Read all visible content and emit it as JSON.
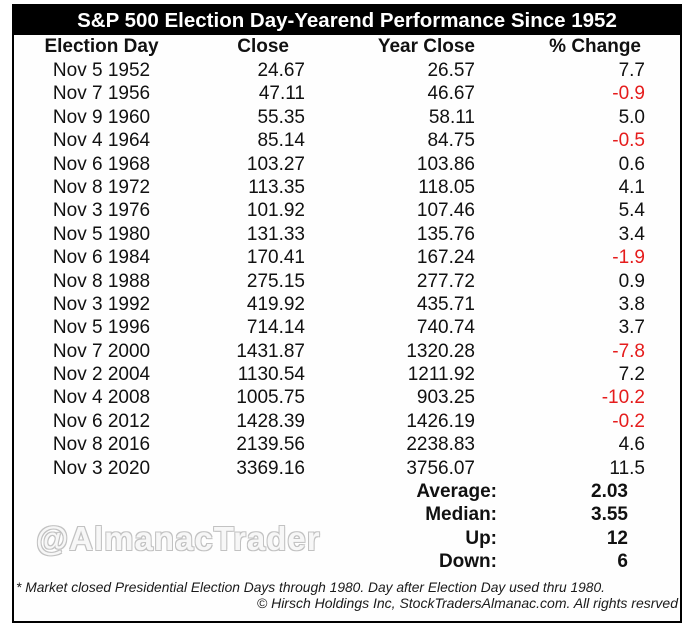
{
  "title": "S&P 500 Election Day-Yearend Performance Since 1952",
  "watermark": "@AlmanacTrader",
  "footnote": "* Market closed Presidential Election Days through 1980. Day after Election Day used thru 1980.",
  "copyright": "© Hirsch Holdings Inc, StockTradersAlmanac.com. All rights resrved",
  "colors": {
    "title_bg": "#000000",
    "title_fg": "#ffffff",
    "text": "#111111",
    "negative": "#e51c1c",
    "watermark_outline": "#c2c2c2"
  },
  "table": {
    "columns": [
      "Election Day",
      "Close",
      "Year Close",
      "% Change"
    ],
    "rows": [
      {
        "date": "Nov 5 1952",
        "close": "24.67",
        "year_close": "26.57",
        "pct_change": "7.7"
      },
      {
        "date": "Nov 7 1956",
        "close": "47.11",
        "year_close": "46.67",
        "pct_change": "-0.9"
      },
      {
        "date": "Nov 9 1960",
        "close": "55.35",
        "year_close": "58.11",
        "pct_change": "5.0"
      },
      {
        "date": "Nov 4 1964",
        "close": "85.14",
        "year_close": "84.75",
        "pct_change": "-0.5"
      },
      {
        "date": "Nov 6 1968",
        "close": "103.27",
        "year_close": "103.86",
        "pct_change": "0.6"
      },
      {
        "date": "Nov 8 1972",
        "close": "113.35",
        "year_close": "118.05",
        "pct_change": "4.1"
      },
      {
        "date": "Nov 3 1976",
        "close": "101.92",
        "year_close": "107.46",
        "pct_change": "5.4"
      },
      {
        "date": "Nov 5 1980",
        "close": "131.33",
        "year_close": "135.76",
        "pct_change": "3.4"
      },
      {
        "date": "Nov 6 1984",
        "close": "170.41",
        "year_close": "167.24",
        "pct_change": "-1.9"
      },
      {
        "date": "Nov 8 1988",
        "close": "275.15",
        "year_close": "277.72",
        "pct_change": "0.9"
      },
      {
        "date": "Nov 3 1992",
        "close": "419.92",
        "year_close": "435.71",
        "pct_change": "3.8"
      },
      {
        "date": "Nov 5 1996",
        "close": "714.14",
        "year_close": "740.74",
        "pct_change": "3.7"
      },
      {
        "date": "Nov 7 2000",
        "close": "1431.87",
        "year_close": "1320.28",
        "pct_change": "-7.8"
      },
      {
        "date": "Nov 2 2004",
        "close": "1130.54",
        "year_close": "1211.92",
        "pct_change": "7.2"
      },
      {
        "date": "Nov 4 2008",
        "close": "1005.75",
        "year_close": "903.25",
        "pct_change": "-10.2"
      },
      {
        "date": "Nov 6 2012",
        "close": "1428.39",
        "year_close": "1426.19",
        "pct_change": "-0.2"
      },
      {
        "date": "Nov 8 2016",
        "close": "2139.56",
        "year_close": "2238.83",
        "pct_change": "4.6"
      },
      {
        "date": "Nov 3 2020",
        "close": "3369.16",
        "year_close": "3756.07",
        "pct_change": "11.5"
      }
    ],
    "summary": [
      {
        "label": "Average:",
        "value": "2.03"
      },
      {
        "label": "Median:",
        "value": "3.55"
      },
      {
        "label": "Up:",
        "value": "12"
      },
      {
        "label": "Down:",
        "value": "6"
      }
    ]
  },
  "chart_data": {
    "type": "table",
    "title": "S&P 500 Election Day-Yearend Performance Since 1952",
    "columns": [
      "Election Day",
      "Close",
      "Year Close",
      "% Change"
    ],
    "election_days": [
      "Nov 5 1952",
      "Nov 7 1956",
      "Nov 9 1960",
      "Nov 4 1964",
      "Nov 6 1968",
      "Nov 8 1972",
      "Nov 3 1976",
      "Nov 5 1980",
      "Nov 6 1984",
      "Nov 8 1988",
      "Nov 3 1992",
      "Nov 5 1996",
      "Nov 7 2000",
      "Nov 2 2004",
      "Nov 4 2008",
      "Nov 6 2012",
      "Nov 8 2016",
      "Nov 3 2020"
    ],
    "close": [
      24.67,
      47.11,
      55.35,
      85.14,
      103.27,
      113.35,
      101.92,
      131.33,
      170.41,
      275.15,
      419.92,
      714.14,
      1431.87,
      1130.54,
      1005.75,
      1428.39,
      2139.56,
      3369.16
    ],
    "year_close": [
      26.57,
      46.67,
      58.11,
      84.75,
      103.86,
      118.05,
      107.46,
      135.76,
      167.24,
      277.72,
      435.71,
      740.74,
      1320.28,
      1211.92,
      903.25,
      1426.19,
      2238.83,
      3756.07
    ],
    "pct_change": [
      7.7,
      -0.9,
      5.0,
      -0.5,
      0.6,
      4.1,
      5.4,
      3.4,
      -1.9,
      0.9,
      3.8,
      3.7,
      -7.8,
      7.2,
      -10.2,
      -0.2,
      4.6,
      11.5
    ],
    "summary": {
      "average": 2.03,
      "median": 3.55,
      "up": 12,
      "down": 6
    },
    "negative_values_color": "#e51c1c"
  }
}
